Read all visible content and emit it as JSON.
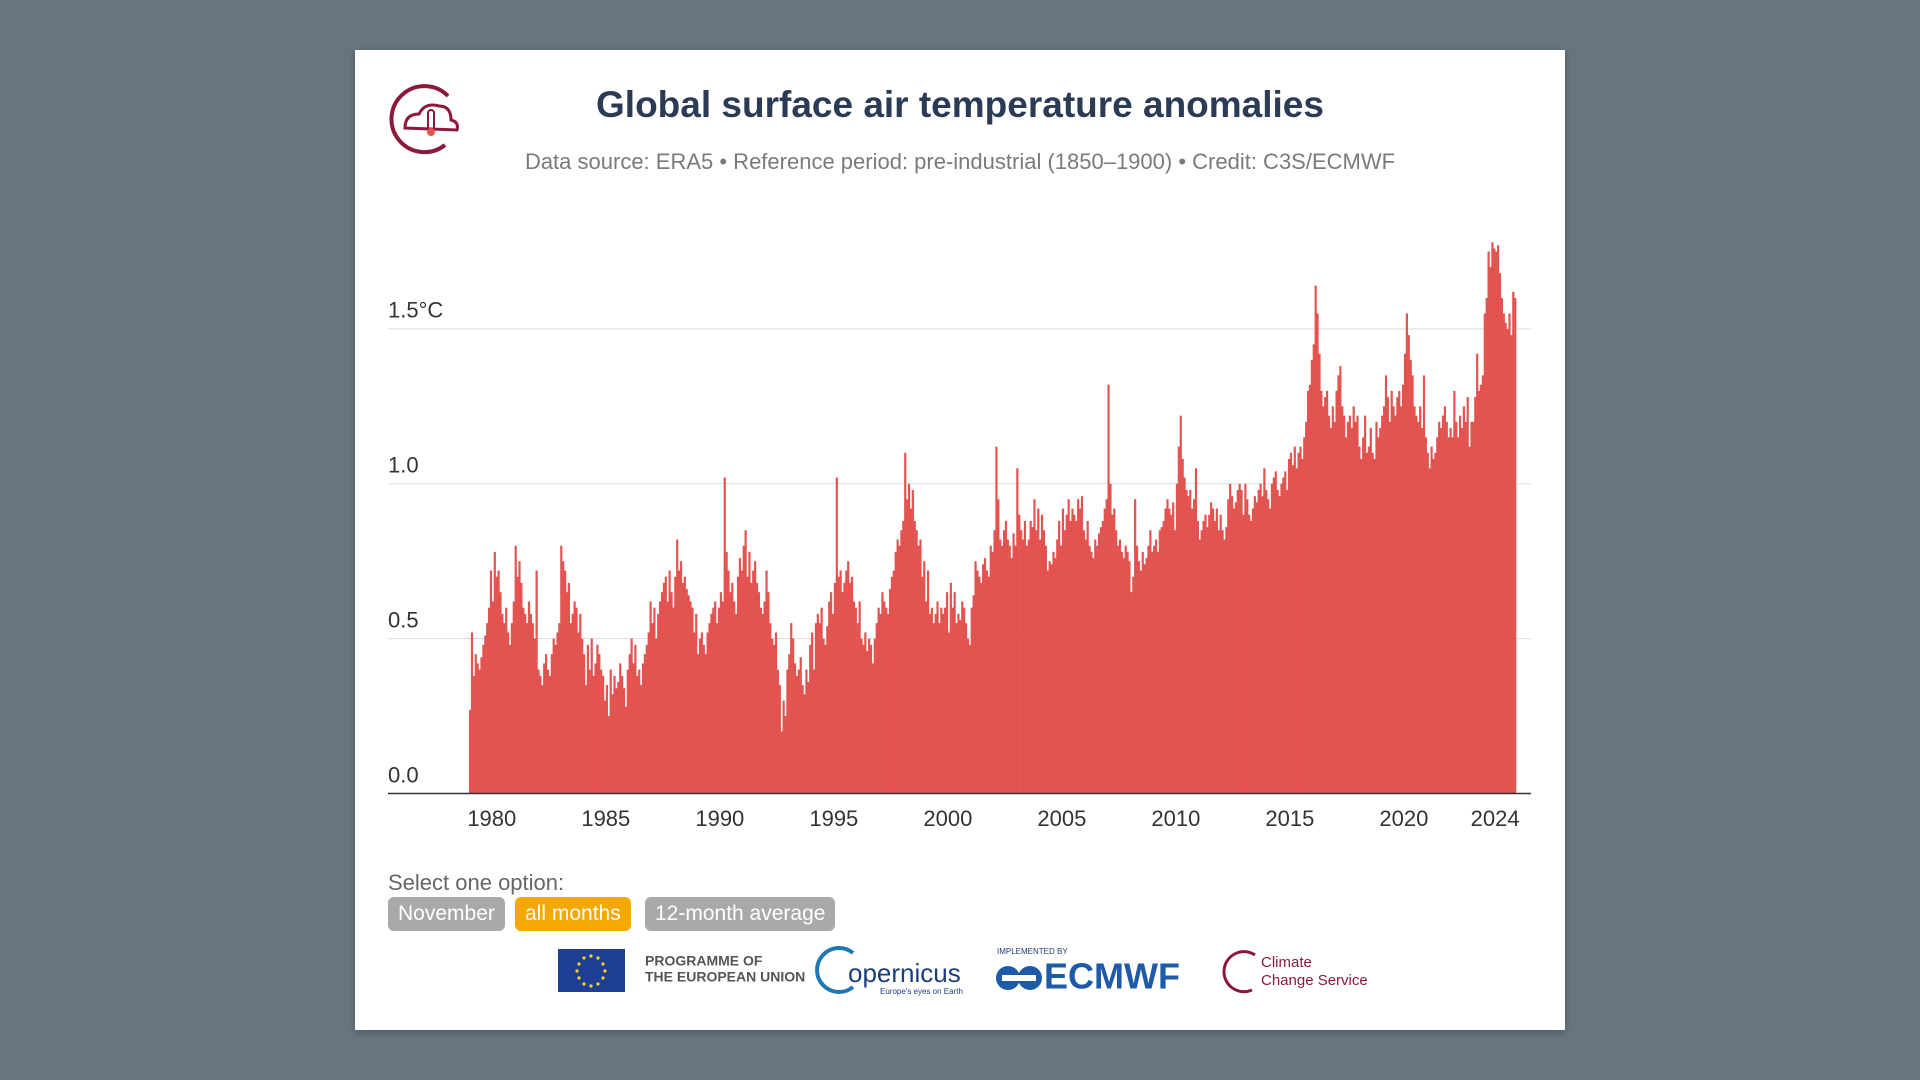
{
  "chart_data": {
    "type": "bar",
    "title": "Global surface air temperature anomalies",
    "subtitle": "Data source: ERA5 • Reference period: pre-industrial (1850–1900) • Credit: C3S/ECMWF",
    "color": "#e35350",
    "grid": true,
    "ylim": [
      0,
      1.8
    ],
    "yticks": [
      {
        "value": 0,
        "label": "0.0"
      },
      0.5,
      {
        "value": 1,
        "label": "1.0"
      },
      {
        "value": 1.5,
        "label": "1.5°C"
      }
    ],
    "categories": [
      null,
      null,
      null,
      null,
      null,
      null,
      null,
      null,
      null,
      null,
      null,
      null,
      "1980",
      null,
      null,
      null,
      null,
      null,
      null,
      null,
      null,
      null,
      null,
      null,
      null,
      null,
      null,
      null,
      null,
      null,
      null,
      null,
      null,
      null,
      null,
      null,
      null,
      null,
      null,
      null,
      null,
      null,
      null,
      null,
      null,
      null,
      null,
      null,
      null,
      null,
      null,
      null,
      null,
      null,
      null,
      null,
      null,
      null,
      null,
      null,
      null,
      null,
      null,
      null,
      null,
      null,
      null,
      null,
      null,
      null,
      null,
      null,
      "1985",
      null,
      null,
      null,
      null,
      null,
      null,
      null,
      null,
      null,
      null,
      null,
      null,
      null,
      null,
      null,
      null,
      null,
      null,
      null,
      null,
      null,
      null,
      null,
      null,
      null,
      null,
      null,
      null,
      null,
      null,
      null,
      null,
      null,
      null,
      null,
      null,
      null,
      null,
      null,
      null,
      null,
      null,
      null,
      null,
      null,
      null,
      null,
      null,
      null,
      null,
      null,
      null,
      null,
      null,
      null,
      null,
      null,
      null,
      null,
      "1990",
      null,
      null,
      null,
      null,
      null,
      null,
      null,
      null,
      null,
      null,
      null,
      null,
      null,
      null,
      null,
      null,
      null,
      null,
      null,
      null,
      null,
      null,
      null,
      null,
      null,
      null,
      null,
      null,
      null,
      null,
      null,
      null,
      null,
      null,
      null,
      null,
      null,
      null,
      null,
      null,
      null,
      null,
      null,
      null,
      null,
      null,
      null,
      null,
      null,
      null,
      null,
      null,
      null,
      null,
      null,
      null,
      null,
      null,
      null,
      "1995",
      null,
      null,
      null,
      null,
      null,
      null,
      null,
      null,
      null,
      null,
      null,
      null,
      null,
      null,
      null,
      null,
      null,
      null,
      null,
      null,
      null,
      null,
      null,
      null,
      null,
      null,
      null,
      null,
      null,
      null,
      null,
      null,
      null,
      null,
      null,
      null,
      null,
      null,
      null,
      null,
      null,
      null,
      null,
      null,
      null,
      null,
      null,
      null,
      null,
      null,
      null,
      null,
      null,
      null,
      null,
      null,
      null,
      null,
      null,
      "2000",
      null,
      null,
      null,
      null,
      null,
      null,
      null,
      null,
      null,
      null,
      null,
      null,
      null,
      null,
      null,
      null,
      null,
      null,
      null,
      null,
      null,
      null,
      null,
      null,
      null,
      null,
      null,
      null,
      null,
      null,
      null,
      null,
      null,
      null,
      null,
      null,
      null,
      null,
      null,
      null,
      null,
      null,
      null,
      null,
      null,
      null,
      null,
      null,
      null,
      null,
      null,
      null,
      null,
      null,
      null,
      null,
      null,
      null,
      null,
      "2005",
      null,
      null,
      null,
      null,
      null,
      null,
      null,
      null,
      null,
      null,
      null,
      null,
      null,
      null,
      null,
      null,
      null,
      null,
      null,
      null,
      null,
      null,
      null,
      null,
      null,
      null,
      null,
      null,
      null,
      null,
      null,
      null,
      null,
      null,
      null,
      null,
      null,
      null,
      null,
      null,
      null,
      null,
      null,
      null,
      null,
      null,
      null,
      null,
      null,
      null,
      null,
      null,
      null,
      null,
      null,
      null,
      null,
      null,
      null,
      "2010",
      null,
      null,
      null,
      null,
      null,
      null,
      null,
      null,
      null,
      null,
      null,
      null,
      null,
      null,
      null,
      null,
      null,
      null,
      null,
      null,
      null,
      null,
      null,
      null,
      null,
      null,
      null,
      null,
      null,
      null,
      null,
      null,
      null,
      null,
      null,
      null,
      null,
      null,
      null,
      null,
      null,
      null,
      null,
      null,
      null,
      null,
      null,
      null,
      null,
      null,
      null,
      null,
      null,
      null,
      null,
      null,
      null,
      null,
      null,
      "2015",
      null,
      null,
      null,
      null,
      null,
      null,
      null,
      null,
      null,
      null,
      null,
      null,
      null,
      null,
      null,
      null,
      null,
      null,
      null,
      null,
      null,
      null,
      null,
      null,
      null,
      null,
      null,
      null,
      null,
      null,
      null,
      null,
      null,
      null,
      null,
      null,
      null,
      null,
      null,
      null,
      null,
      null,
      null,
      null,
      null,
      null,
      null,
      null,
      null,
      null,
      null,
      null,
      null,
      null,
      null,
      null,
      null,
      null,
      null,
      "2020",
      null,
      null,
      null,
      null,
      null,
      null,
      null,
      null,
      null,
      null,
      null,
      null,
      null,
      null,
      null,
      null,
      null,
      null,
      null,
      null,
      null,
      null,
      null,
      null,
      null,
      null,
      null,
      null,
      null,
      null,
      null,
      null,
      null,
      null,
      null,
      null,
      null,
      null,
      null,
      null,
      null,
      null,
      null,
      null,
      null,
      null,
      null,
      "2024",
      null,
      null,
      null,
      null,
      null,
      null,
      null,
      null,
      null,
      null
    ],
    "values": [
      0.27,
      0.52,
      0.38,
      0.45,
      0.42,
      0.4,
      0.44,
      0.48,
      0.51,
      0.55,
      0.6,
      0.72,
      0.62,
      0.78,
      0.7,
      0.72,
      0.65,
      0.58,
      0.55,
      0.6,
      0.52,
      0.48,
      0.55,
      0.62,
      0.8,
      0.7,
      0.75,
      0.68,
      0.6,
      0.58,
      0.55,
      0.62,
      0.58,
      0.55,
      0.5,
      0.72,
      0.4,
      0.38,
      0.35,
      0.42,
      0.45,
      0.4,
      0.38,
      0.45,
      0.5,
      0.48,
      0.52,
      0.55,
      0.8,
      0.75,
      0.72,
      0.65,
      0.68,
      0.55,
      0.58,
      0.62,
      0.6,
      0.52,
      0.58,
      0.5,
      0.45,
      0.35,
      0.48,
      0.4,
      0.5,
      0.38,
      0.42,
      0.48,
      0.45,
      0.4,
      0.38,
      0.3,
      0.35,
      0.25,
      0.4,
      0.32,
      0.38,
      0.34,
      0.36,
      0.42,
      0.38,
      0.34,
      0.28,
      0.4,
      0.45,
      0.5,
      0.42,
      0.48,
      0.38,
      0.4,
      0.35,
      0.42,
      0.45,
      0.48,
      0.52,
      0.62,
      0.55,
      0.6,
      0.5,
      0.58,
      0.62,
      0.65,
      0.68,
      0.7,
      0.62,
      0.72,
      0.65,
      0.6,
      0.7,
      0.82,
      0.72,
      0.75,
      0.68,
      0.7,
      0.66,
      0.64,
      0.62,
      0.6,
      0.52,
      0.58,
      0.45,
      0.5,
      0.52,
      0.48,
      0.45,
      0.52,
      0.55,
      0.58,
      0.6,
      0.62,
      0.55,
      0.6,
      0.65,
      0.62,
      1.02,
      0.78,
      0.72,
      0.65,
      0.68,
      0.62,
      0.58,
      0.7,
      0.76,
      0.72,
      0.8,
      0.85,
      0.7,
      0.78,
      0.68,
      0.72,
      0.75,
      0.68,
      0.65,
      0.6,
      0.58,
      0.62,
      0.72,
      0.65,
      0.55,
      0.5,
      0.48,
      0.52,
      0.4,
      0.35,
      0.2,
      0.3,
      0.25,
      0.4,
      0.45,
      0.55,
      0.5,
      0.42,
      0.38,
      0.4,
      0.44,
      0.35,
      0.32,
      0.4,
      0.36,
      0.48,
      0.52,
      0.4,
      0.55,
      0.58,
      0.55,
      0.6,
      0.5,
      0.48,
      0.54,
      0.62,
      0.65,
      0.58,
      0.68,
      1.02,
      0.7,
      0.72,
      0.65,
      0.68,
      0.72,
      0.75,
      0.68,
      0.7,
      0.62,
      0.6,
      0.55,
      0.62,
      0.5,
      0.48,
      0.52,
      0.46,
      0.5,
      0.48,
      0.42,
      0.5,
      0.55,
      0.6,
      0.58,
      0.65,
      0.62,
      0.6,
      0.58,
      0.66,
      0.7,
      0.72,
      0.78,
      0.82,
      0.8,
      0.85,
      0.88,
      1.1,
      0.95,
      1.0,
      0.92,
      0.98,
      0.88,
      0.85,
      0.8,
      0.82,
      0.7,
      0.75,
      0.62,
      0.72,
      0.58,
      0.6,
      0.55,
      0.58,
      0.62,
      0.55,
      0.6,
      0.58,
      0.6,
      0.65,
      0.52,
      0.68,
      0.6,
      0.65,
      0.55,
      0.58,
      0.56,
      0.62,
      0.6,
      0.55,
      0.5,
      0.48,
      0.6,
      0.64,
      0.75,
      0.72,
      0.7,
      0.68,
      0.74,
      0.76,
      0.72,
      0.7,
      0.8,
      0.78,
      0.85,
      1.12,
      0.95,
      0.82,
      0.8,
      0.85,
      0.88,
      0.82,
      0.8,
      0.76,
      0.84,
      0.8,
      1.05,
      0.9,
      0.85,
      0.82,
      0.88,
      0.8,
      0.82,
      0.88,
      0.86,
      0.95,
      0.85,
      0.92,
      0.82,
      0.9,
      0.85,
      0.8,
      0.72,
      0.75,
      0.74,
      0.78,
      0.76,
      0.82,
      0.88,
      0.8,
      0.92,
      0.85,
      0.9,
      0.95,
      0.88,
      0.92,
      0.9,
      0.88,
      0.95,
      0.92,
      0.96,
      0.85,
      0.82,
      0.88,
      0.8,
      0.78,
      0.76,
      0.82,
      0.8,
      0.84,
      0.86,
      0.88,
      0.92,
      0.95,
      1.32,
      1.0,
      0.9,
      0.92,
      0.85,
      0.8,
      0.82,
      0.78,
      0.76,
      0.8,
      0.78,
      0.75,
      0.65,
      0.7,
      0.95,
      0.8,
      0.75,
      0.72,
      0.78,
      0.74,
      0.76,
      0.8,
      0.85,
      0.78,
      0.8,
      0.82,
      0.78,
      0.85,
      0.86,
      0.88,
      0.92,
      0.95,
      0.92,
      0.9,
      0.94,
      0.85,
      1.0,
      1.12,
      1.22,
      1.08,
      1.02,
      0.98,
      0.96,
      0.98,
      0.92,
      0.95,
      1.05,
      0.88,
      0.82,
      0.85,
      0.88,
      0.9,
      0.86,
      0.9,
      0.94,
      0.92,
      0.88,
      0.92,
      0.85,
      0.9,
      0.85,
      0.82,
      0.86,
      0.95,
      1.0,
      0.96,
      0.92,
      0.94,
      0.98,
      1.0,
      0.98,
      0.9,
      1.0,
      0.95,
      0.9,
      0.88,
      0.92,
      0.96,
      0.94,
      0.98,
      1.0,
      0.96,
      1.05,
      0.98,
      0.95,
      0.92,
      1.0,
      1.02,
      1.04,
      0.98,
      0.96,
      1.0,
      1.02,
      1.04,
      0.98,
      1.08,
      1.1,
      1.06,
      1.12,
      1.05,
      1.1,
      1.12,
      1.08,
      1.15,
      1.2,
      1.3,
      1.32,
      1.4,
      1.45,
      1.64,
      1.55,
      1.42,
      1.3,
      1.25,
      1.28,
      1.3,
      1.22,
      1.18,
      1.25,
      1.2,
      1.3,
      1.35,
      1.38,
      1.25,
      1.22,
      1.15,
      1.2,
      1.22,
      1.18,
      1.25,
      1.2,
      1.22,
      1.12,
      1.08,
      1.15,
      1.22,
      1.1,
      1.12,
      1.18,
      1.1,
      1.08,
      1.2,
      1.15,
      1.18,
      1.22,
      1.25,
      1.35,
      1.28,
      1.2,
      1.3,
      1.25,
      1.22,
      1.28,
      1.3,
      1.25,
      1.32,
      1.42,
      1.55,
      1.48,
      1.4,
      1.35,
      1.25,
      1.22,
      1.2,
      1.25,
      1.18,
      1.35,
      1.15,
      1.1,
      1.05,
      1.12,
      1.08,
      1.1,
      1.15,
      1.2,
      1.18,
      1.22,
      1.25,
      1.2,
      1.15,
      1.18,
      1.15,
      1.3,
      1.2,
      1.15,
      1.22,
      1.18,
      1.25,
      1.2,
      1.28,
      1.12,
      1.2,
      1.2,
      1.28,
      1.42,
      1.3,
      1.32,
      1.35,
      1.55,
      1.6,
      1.75,
      1.7,
      1.78,
      1.76,
      1.75,
      1.77,
      1.68,
      1.6,
      1.55,
      1.52,
      1.5,
      1.55,
      1.48,
      1.62,
      1.6
    ]
  },
  "controls": {
    "prompt": "Select one option:",
    "options": [
      "November",
      "all months",
      "12-month average"
    ]
  },
  "footer": {
    "eu": [
      "PROGRAMME OF",
      "THE EUROPEAN UNION"
    ],
    "copernicus": "opernicus",
    "copernicus_tagline": "Europe's eyes on Earth",
    "ecmwf_note": "IMPLEMENTED BY",
    "ecmwf": "ECMWF",
    "c3s": [
      "Climate",
      "Change Service"
    ]
  }
}
